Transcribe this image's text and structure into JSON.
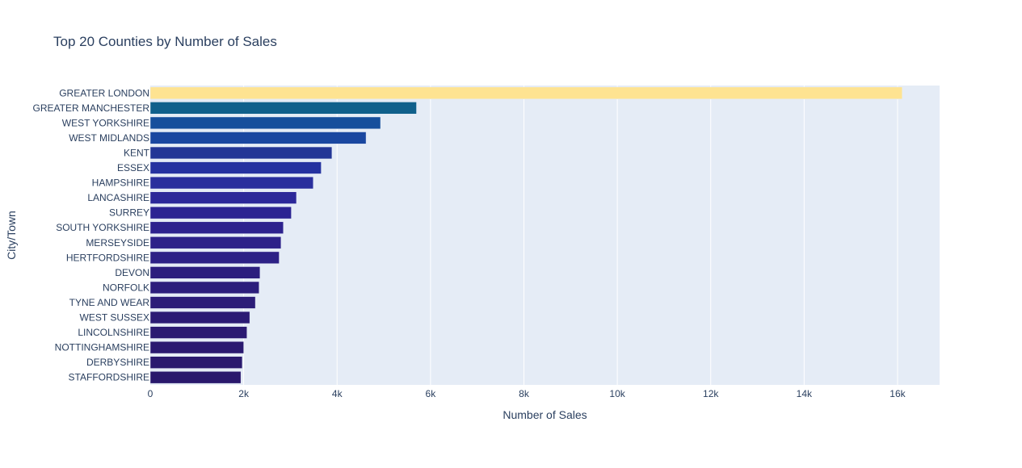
{
  "chart_data": {
    "type": "bar",
    "orientation": "horizontal",
    "title": "Top 20 Counties by Number of Sales",
    "xlabel": "Number of Sales",
    "ylabel": "City/Town",
    "xlim": [
      0,
      16900
    ],
    "x_ticks": [
      0,
      2000,
      4000,
      6000,
      8000,
      10000,
      12000,
      14000,
      16000
    ],
    "x_tick_labels": [
      "0",
      "2k",
      "4k",
      "6k",
      "8k",
      "10k",
      "12k",
      "14k",
      "16k"
    ],
    "grid": true,
    "categories": [
      "GREATER LONDON",
      "GREATER MANCHESTER",
      "WEST YORKSHIRE",
      "WEST MIDLANDS",
      "KENT",
      "ESSEX",
      "HAMPSHIRE",
      "LANCASHIRE",
      "SURREY",
      "SOUTH YORKSHIRE",
      "MERSEYSIDE",
      "HERTFORDSHIRE",
      "DEVON",
      "NORFOLK",
      "TYNE AND WEAR",
      "WEST SUSSEX",
      "LINCOLNSHIRE",
      "NOTTINGHAMSHIRE",
      "DERBYSHIRE",
      "STAFFORDSHIRE"
    ],
    "values": [
      16100,
      5700,
      4930,
      4620,
      3890,
      3660,
      3490,
      3130,
      3020,
      2850,
      2800,
      2760,
      2350,
      2330,
      2250,
      2130,
      2070,
      2000,
      1970,
      1940
    ],
    "colorscale": [
      "#fee391",
      "#10608b",
      "#164f9c",
      "#1a47a0",
      "#233696",
      "#2532a0",
      "#2a2f9d",
      "#2c2899",
      "#2c2492",
      "#2d228e",
      "#2d2289",
      "#2d2186",
      "#2c1e7e",
      "#2c1e7c",
      "#2c1d78",
      "#2b1b74",
      "#2b1a72",
      "#2a1970",
      "#2a196e",
      "#29186c"
    ]
  }
}
